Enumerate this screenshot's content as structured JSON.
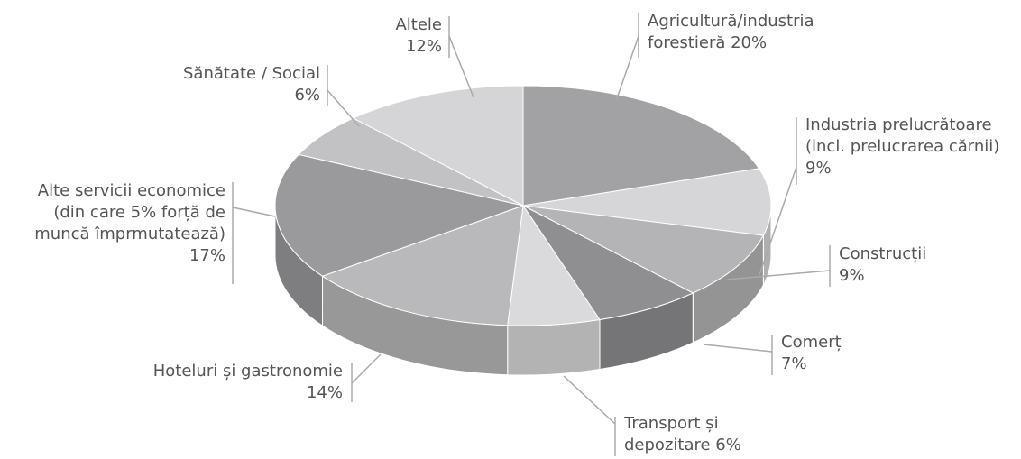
{
  "chart_data": {
    "type": "pie3d",
    "categories": [
      "Agricultură/industria forestieră",
      "Industria prelucrătoare (incl. prelucrarea cărnii)",
      "Construcții",
      "Comerț",
      "Transport și depozitare",
      "Hoteluri și gastronomie",
      "Alte servicii economice (din care 5% forță de muncă împrmutatează)",
      "Sănătate / Social",
      "Altele"
    ],
    "values": [
      20,
      9,
      9,
      7,
      6,
      14,
      17,
      6,
      12
    ],
    "value_labels": [
      "20%",
      "9%",
      "9%",
      "7%",
      "6%",
      "14%",
      "17%",
      "6%",
      "12%"
    ],
    "colors": [
      "#a2a2a5",
      "#d6d6d8",
      "#b4b4b6",
      "#8f8f92",
      "#dadadc",
      "#b9b9bb",
      "#9a9a9d",
      "#c2c2c4",
      "#d5d5d7"
    ]
  }
}
